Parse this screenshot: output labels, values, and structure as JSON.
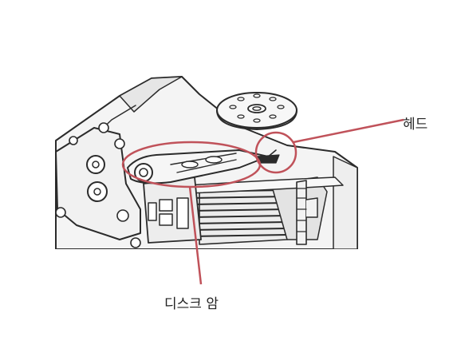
{
  "labels": {
    "head": "헤드",
    "disk_arm": "디스크 암"
  },
  "colors": {
    "callout": "#c0525a",
    "line": "#2b2b2b",
    "fill": "#f4f4f4",
    "shadow": "#cfcfcf"
  }
}
